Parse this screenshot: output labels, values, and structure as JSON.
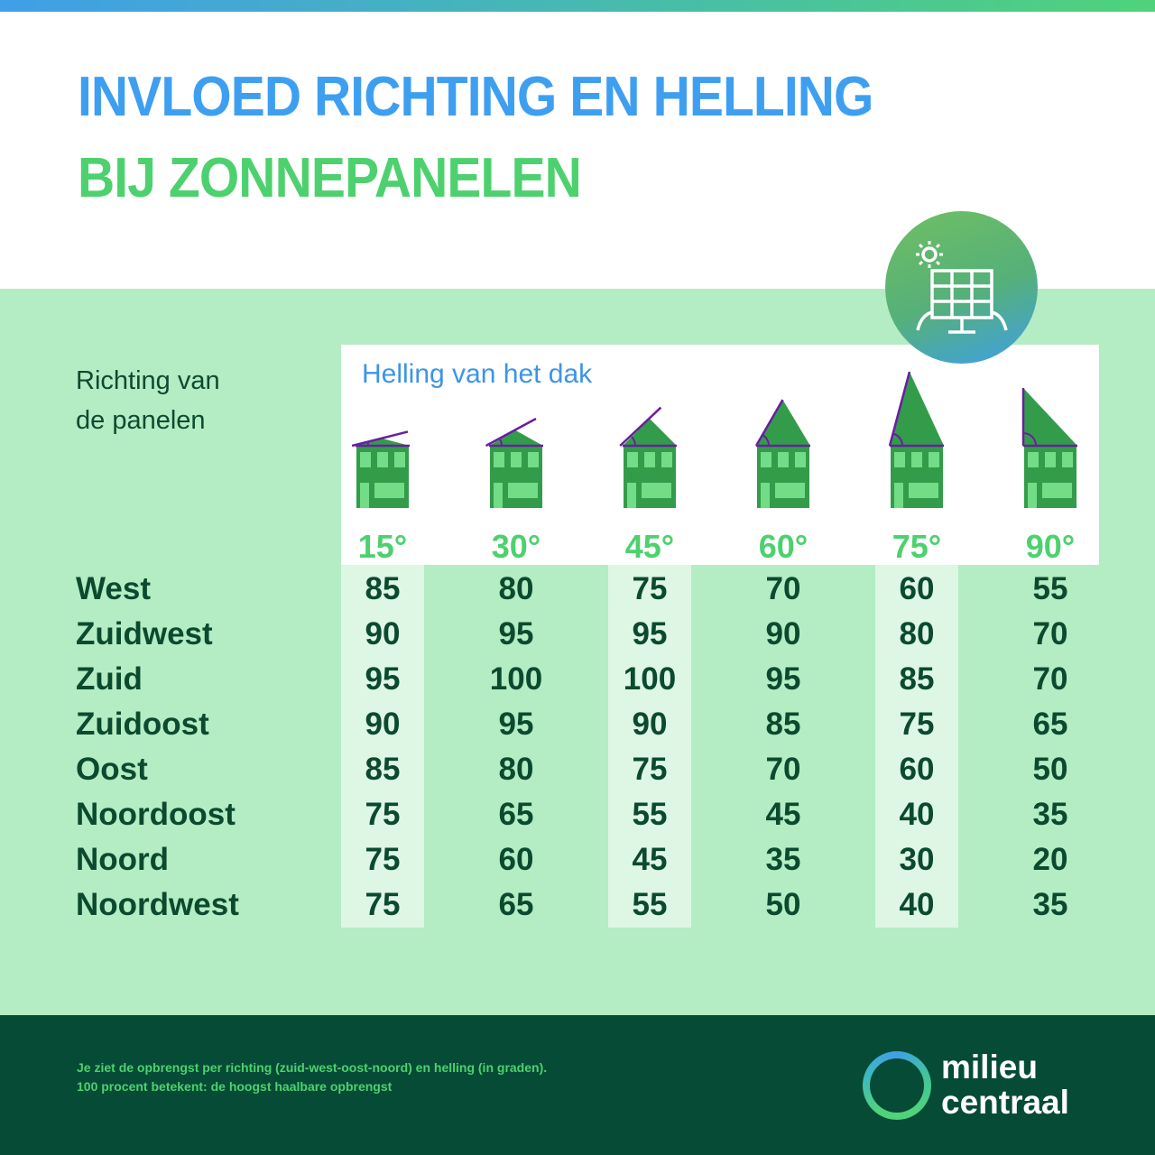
{
  "title_line1": "INVLOED RICHTING EN HELLING",
  "title_line2": "BIJ ZONNEPANELEN",
  "row_header": "Richting van de panelen",
  "row_header_lines": [
    "Richting van",
    "de panelen"
  ],
  "column_header": "Helling van het dak",
  "icon": "solar-panel-sun-icon",
  "colors": {
    "title_blue": "#3e9ff0",
    "title_green": "#4dd16e",
    "band": "#b4ecc4",
    "footer": "#064b36",
    "house": "#339c4a",
    "roof_angle": "#6a1ea0"
  },
  "chart_data": {
    "type": "table",
    "columns": [
      "15°",
      "30°",
      "45°",
      "60°",
      "75°",
      "90°"
    ],
    "rows": [
      "West",
      "Zuidwest",
      "Zuid",
      "Zuidoost",
      "Oost",
      "Noordoost",
      "Noord",
      "Noordwest"
    ],
    "values": [
      [
        85,
        80,
        75,
        70,
        60,
        55
      ],
      [
        90,
        95,
        95,
        90,
        80,
        70
      ],
      [
        95,
        100,
        100,
        95,
        85,
        70
      ],
      [
        90,
        95,
        90,
        85,
        75,
        65
      ],
      [
        85,
        80,
        75,
        70,
        60,
        50
      ],
      [
        75,
        65,
        55,
        45,
        40,
        35
      ],
      [
        75,
        60,
        45,
        35,
        30,
        20
      ],
      [
        75,
        65,
        55,
        50,
        40,
        35
      ]
    ]
  },
  "footer": {
    "note_lines": [
      "Je ziet de opbrengst per richting (zuid-west-oost-noord) en helling (in graden).",
      "100 procent betekent: de hoogst haalbare opbrengst"
    ],
    "logo_lines": [
      "milieu",
      "centraal"
    ]
  }
}
